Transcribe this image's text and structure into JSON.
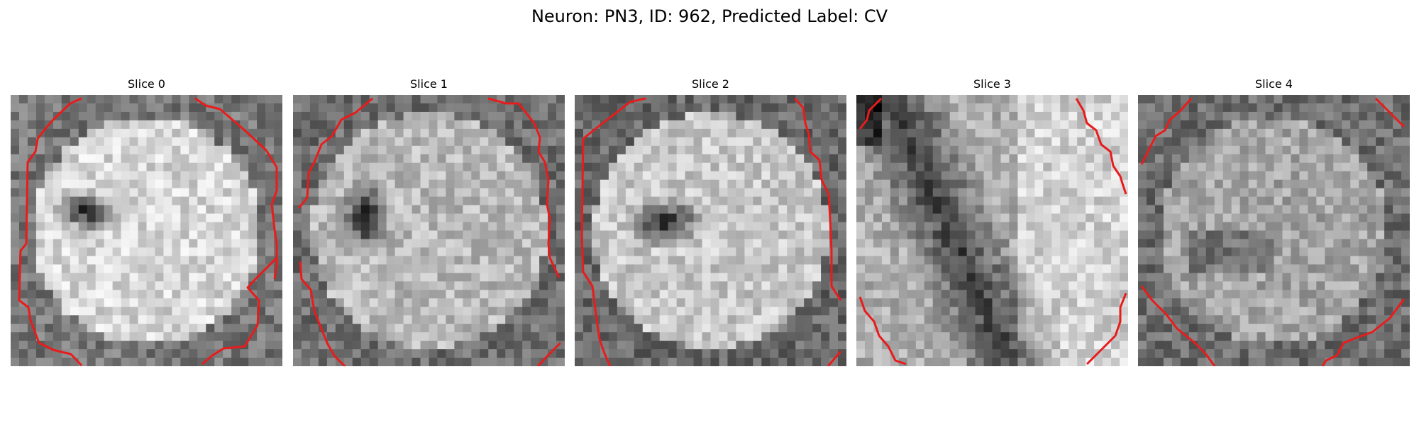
{
  "figure": {
    "title": "Neuron: PN3, ID: 962, Predicted Label: CV",
    "colormap": "gray",
    "contour_color": "#e81c1c",
    "panels": [
      {
        "title": "Slice 0"
      },
      {
        "title": "Slice 1"
      },
      {
        "title": "Slice 2"
      },
      {
        "title": "Slice 3"
      },
      {
        "title": "Slice 4"
      }
    ]
  }
}
